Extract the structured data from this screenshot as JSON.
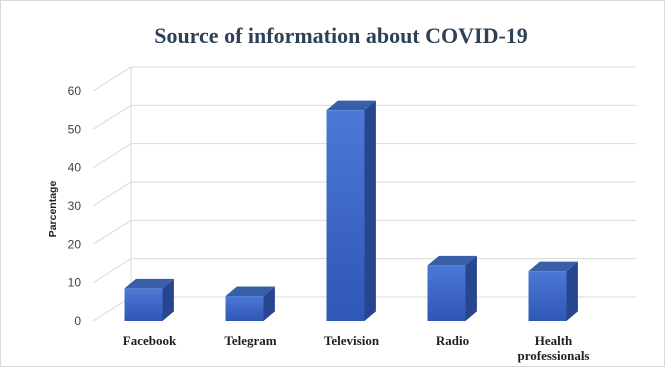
{
  "chart_data": {
    "type": "bar",
    "title": "Source of information about COVID-19",
    "xlabel": "",
    "ylabel": "Parcentage",
    "categories": [
      "Facebook",
      "Telegram",
      "Television",
      "Radio",
      "Health professionals"
    ],
    "category_lines": [
      [
        "Facebook"
      ],
      [
        "Telegram"
      ],
      [
        "Television"
      ],
      [
        "Radio"
      ],
      [
        "Health",
        "professionals"
      ]
    ],
    "values": [
      8.5,
      6.5,
      55,
      14.5,
      13
    ],
    "ylim": [
      0,
      60
    ],
    "yticks": [
      0,
      10,
      20,
      30,
      40,
      50,
      60
    ],
    "grid": true,
    "legend": "none",
    "style": "3d-column",
    "colors": {
      "bar_front_top": "#4d78d6",
      "bar_front_bottom": "#2f57b5",
      "bar_side": "#27468f",
      "bar_top": "#3a5fa9",
      "title": "#2e4155"
    }
  }
}
